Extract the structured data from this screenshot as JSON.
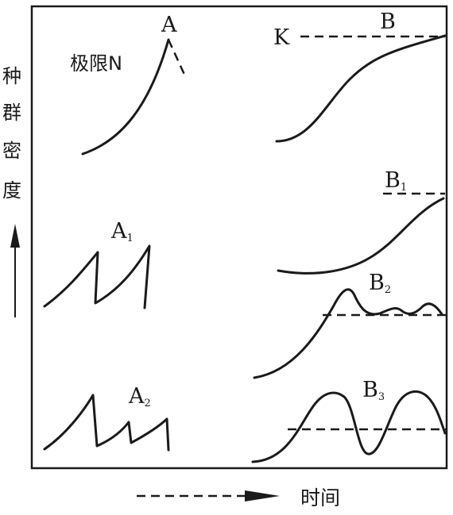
{
  "labels": {
    "y_axis": [
      "种",
      "群",
      "密",
      "度"
    ],
    "x_axis": "时间",
    "limit": "极限N",
    "K": "K",
    "A": "A",
    "A1_main": "A",
    "A1_sub": "1",
    "A2_main": "A",
    "A2_sub": "2",
    "B": "B",
    "B1_main": "B",
    "B1_sub": "1",
    "B2_main": "B",
    "B2_sub": "2",
    "B3_main": "B",
    "B3_sub": "3"
  },
  "colors": {
    "ink": "#1a1a1a",
    "background": "#ffffff"
  }
}
